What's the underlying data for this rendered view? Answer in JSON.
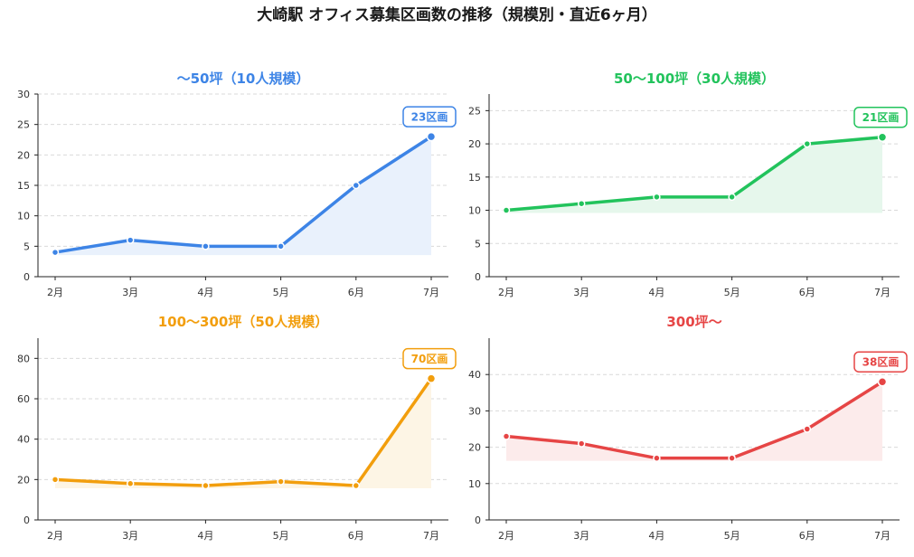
{
  "title": "大崎駅 オフィス募集区画数の推移（規模別・直近6ヶ月）",
  "chart_data": [
    {
      "type": "area",
      "title": "～50坪（10人規模）",
      "color": "#3d84e6",
      "fill": "#e9f1fc",
      "categories": [
        "2月",
        "3月",
        "4月",
        "5月",
        "6月",
        "7月"
      ],
      "values": [
        4,
        6,
        5,
        5,
        15,
        23
      ],
      "ylim": [
        0,
        30
      ],
      "yticks": [
        0,
        5,
        10,
        15,
        20,
        25,
        30
      ],
      "grid": true,
      "annotation": "23区画"
    },
    {
      "type": "area",
      "title": "50～100坪（30人規模）",
      "color": "#22c35c",
      "fill": "#e6f7ec",
      "categories": [
        "2月",
        "3月",
        "4月",
        "5月",
        "6月",
        "7月"
      ],
      "values": [
        10,
        11,
        12,
        12,
        20,
        21
      ],
      "ylim": [
        0,
        27.5
      ],
      "yticks": [
        0,
        5,
        10,
        15,
        20,
        25
      ],
      "grid": true,
      "annotation": "21区画"
    },
    {
      "type": "area",
      "title": "100～300坪（50人規模）",
      "color": "#f29e0d",
      "fill": "#fdf5e5",
      "categories": [
        "2月",
        "3月",
        "4月",
        "5月",
        "6月",
        "7月"
      ],
      "values": [
        20,
        18,
        17,
        19,
        17,
        70
      ],
      "ylim": [
        0,
        90
      ],
      "yticks": [
        0,
        20,
        40,
        60,
        80
      ],
      "grid": true,
      "annotation": "70区画"
    },
    {
      "type": "area",
      "title": "300坪～",
      "color": "#e64545",
      "fill": "#fcebeb",
      "categories": [
        "2月",
        "3月",
        "4月",
        "5月",
        "6月",
        "7月"
      ],
      "values": [
        23,
        21,
        17,
        17,
        25,
        38
      ],
      "ylim": [
        0,
        50
      ],
      "yticks": [
        0,
        10,
        20,
        30,
        40
      ],
      "grid": true,
      "annotation": "38区画"
    }
  ]
}
